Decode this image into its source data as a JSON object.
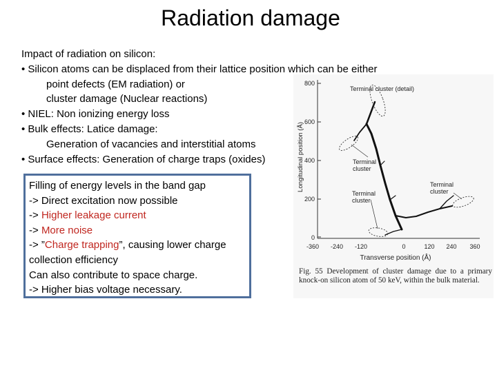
{
  "slide": {
    "title": "Radiation damage",
    "lines": [
      "Impact of radiation on silicon:",
      "• Silicon atoms can be displaced from their lattice position which can be either",
      "point defects (EM radiation) or",
      "cluster damage (Nuclear reactions)",
      "• NIEL: Non ionizing energy loss",
      "• Bulk effects: Latice damage:",
      "Generation of vacancies and interstitial atoms",
      "• Surface effects: Generation of charge traps (oxides)"
    ]
  },
  "box": {
    "line1": "Filling of energy levels in the band gap",
    "line2": "-> Direct excitation now possible",
    "line3_prefix": "-> ",
    "line3_red": "Higher leakage current",
    "line4_prefix": "-> ",
    "line4_red": "More noise",
    "line5_prefix": "-> ”",
    "line5_red": "Charge trapping",
    "line5_suffix": "”, causing lower charge",
    "line6": "collection efficiency",
    "line7": "Can also contribute to space charge.",
    "line8": "-> Higher bias voltage necessary."
  },
  "figure": {
    "label_terminal_detail": "Terminal cluster (detail)",
    "label_terminal_left1": "Terminal",
    "label_terminal_left2": "cluster",
    "label_terminal_mid1": "Terminal",
    "label_terminal_mid2": "cluster",
    "label_terminal_right1": "Terminal",
    "label_terminal_right2": "cluster",
    "y_axis_label": "Longitudinal position (Å)",
    "x_axis_label": "Transverse position (Å)",
    "y_ticks": [
      "800",
      "600",
      "400",
      "200",
      "0"
    ],
    "x_ticks": [
      "-360",
      "-240",
      "-120",
      "0",
      "120",
      "240",
      "360"
    ],
    "caption": "Fig. 55 Development of cluster damage due to a primary knock-on silicon atom of 50 keV, within the bulk material."
  },
  "colors": {
    "box_border": "#4f6f9c",
    "red_text": "#c0261f"
  }
}
